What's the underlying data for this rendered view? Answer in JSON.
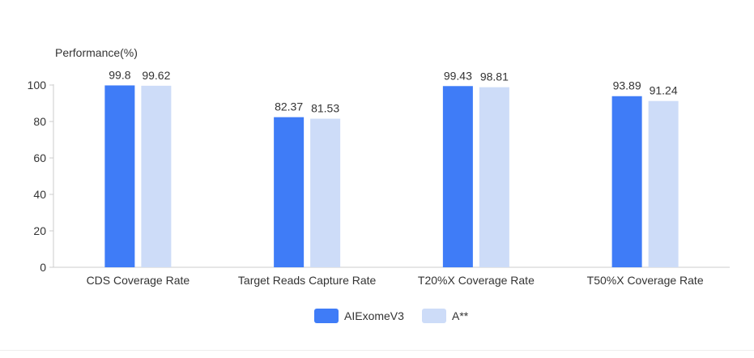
{
  "chart_data": {
    "type": "bar",
    "ylabel": "Performance(%)",
    "ylim": [
      0,
      100
    ],
    "yticks": [
      "0",
      "20",
      "40",
      "60",
      "80",
      "100"
    ],
    "categories": [
      "CDS Coverage Rate",
      "Target Reads Capture Rate",
      "T20%X Coverage Rate",
      "T50%X Coverage Rate"
    ],
    "series": [
      {
        "name": "AIExomeV3",
        "color": "#3f7cf7",
        "values": [
          99.8,
          82.37,
          99.43,
          93.89
        ],
        "labels": [
          "99.8",
          "82.37",
          "99.43",
          "93.89"
        ]
      },
      {
        "name": "A**",
        "color": "#cddcf8",
        "values": [
          99.62,
          81.53,
          98.81,
          91.24
        ],
        "labels": [
          "99.62",
          "81.53",
          "98.81",
          "91.24"
        ]
      }
    ],
    "grid": false,
    "legend_position": "bottom-center"
  }
}
